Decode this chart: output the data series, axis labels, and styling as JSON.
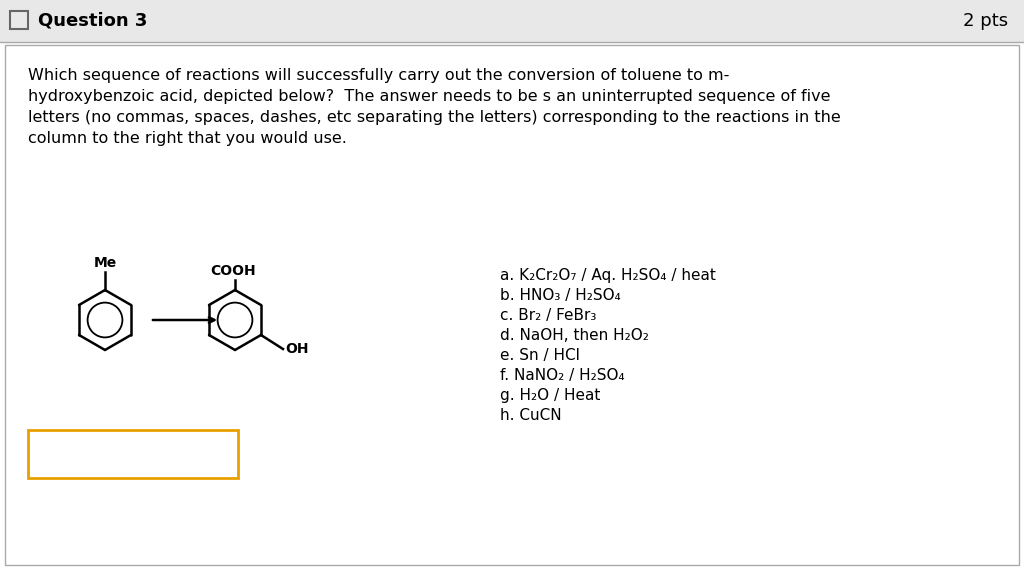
{
  "header_bg": "#e8e8e8",
  "body_bg": "#ffffff",
  "border_color": "#aaaaaa",
  "header_text": "Question 3",
  "pts_text": "2 pts",
  "question_text_lines": [
    "Which sequence of reactions will successfully carry out the conversion of toluene to m-",
    "hydroxybenzoic acid, depicted below?  The answer needs to be s an uninterrupted sequence of five",
    "letters (no commas, spaces, dashes, etc separating the letters) corresponding to the reactions in the",
    "column to the right that you would use."
  ],
  "reactions": [
    "a. K₂Cr₂O₇ / Aq. H₂SO₄ / heat",
    "b. HNO₃ / H₂SO₄",
    "c. Br₂ / FeBr₃",
    "d. NaOH, then H₂O₂",
    "e. Sn / HCl",
    "f. NaNO₂ / H₂SO₄",
    "g. H₂O / Heat",
    "h. CuCN"
  ],
  "answer_box_color": "#e8a000",
  "left_molecule_label": "Me",
  "right_molecule_label_top": "COOH",
  "right_molecule_label_bottom": "OH"
}
